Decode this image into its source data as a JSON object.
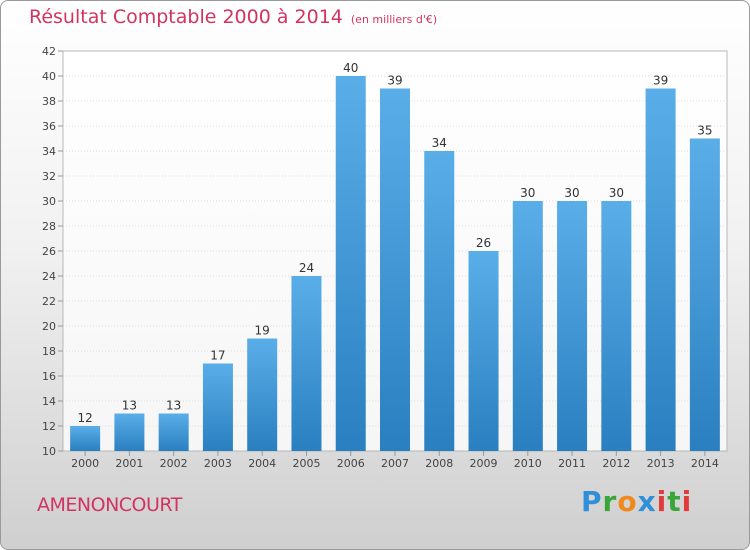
{
  "header": {
    "title": "Résultat Comptable 2000 à 2014",
    "subtitle": "(en milliers d'€)"
  },
  "footer": {
    "commune": "AMENONCOURT",
    "logo": "Proxiti"
  },
  "colors": {
    "title": "#d23460",
    "bar_light": "#5aaee8",
    "bar_dark": "#2a7fc0"
  },
  "chart_data": {
    "type": "bar",
    "title": "Résultat Comptable 2000 à 2014",
    "subtitle": "(en milliers d'€)",
    "categories": [
      "2000",
      "2001",
      "2002",
      "2003",
      "2004",
      "2005",
      "2006",
      "2007",
      "2008",
      "2009",
      "2010",
      "2011",
      "2012",
      "2013",
      "2014"
    ],
    "values": [
      12,
      13,
      13,
      17,
      19,
      24,
      40,
      39,
      34,
      26,
      30,
      30,
      30,
      39,
      35
    ],
    "ylim": [
      10,
      42
    ],
    "yticks": [
      10,
      12,
      14,
      16,
      18,
      20,
      22,
      24,
      26,
      28,
      30,
      32,
      34,
      36,
      38,
      40,
      42
    ],
    "grid": true,
    "legend": "none"
  }
}
